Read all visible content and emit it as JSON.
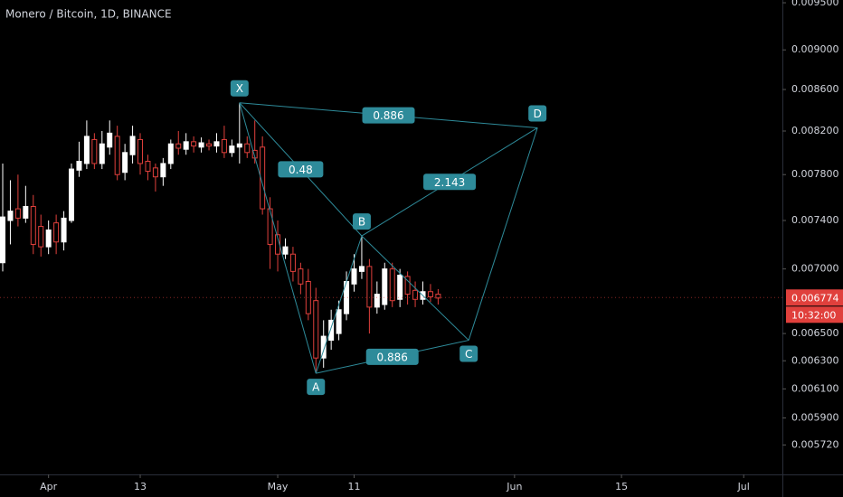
{
  "chart_data": {
    "type": "candlestick",
    "title": "Monero / Bitcoin, 1D, BINANCE",
    "log_scale": true,
    "up_color": "#ffffff",
    "down_color": "#e0403c",
    "pattern_color": "#2e8b9a",
    "x": [
      "03-26",
      "03-27",
      "03-28",
      "03-29",
      "03-30",
      "03-31",
      "04-01",
      "04-02",
      "04-03",
      "04-04",
      "04-05",
      "04-06",
      "04-07",
      "04-08",
      "04-09",
      "04-10",
      "04-11",
      "04-12",
      "04-13",
      "04-14",
      "04-15",
      "04-16",
      "04-17",
      "04-18",
      "04-19",
      "04-20",
      "04-21",
      "04-22",
      "04-23",
      "04-24",
      "04-25",
      "04-26",
      "04-27",
      "04-28",
      "04-29",
      "04-30",
      "05-01",
      "05-02",
      "05-03",
      "05-04",
      "05-05",
      "05-06",
      "05-07",
      "05-08",
      "05-09",
      "05-10",
      "05-11",
      "05-12",
      "05-13",
      "05-14",
      "05-15",
      "05-16",
      "05-17",
      "05-18",
      "05-19",
      "05-20",
      "05-21",
      "05-22"
    ],
    "open": [
      0.00705,
      0.0074,
      0.0075,
      0.00742,
      0.00752,
      0.00735,
      0.00718,
      0.00738,
      0.00722,
      0.0074,
      0.00784,
      0.0079,
      0.00812,
      0.0079,
      0.00805,
      0.00815,
      0.00782,
      0.00798,
      0.00812,
      0.00792,
      0.00786,
      0.00778,
      0.0079,
      0.00808,
      0.00803,
      0.0081,
      0.00805,
      0.00808,
      0.00806,
      0.00812,
      0.008,
      0.00805,
      0.00808,
      0.00802,
      0.00805,
      0.0075,
      0.00728,
      0.00712,
      0.00712,
      0.007,
      0.0069,
      0.00675,
      0.00632,
      0.00645,
      0.0065,
      0.00665,
      0.00688,
      0.00698,
      0.00702,
      0.0067,
      0.00672,
      0.007,
      0.00676,
      0.00694,
      0.00683,
      0.00676,
      0.00682,
      0.0068
    ],
    "high": [
      0.0079,
      0.00775,
      0.0078,
      0.0077,
      0.00762,
      0.00745,
      0.0074,
      0.00745,
      0.00748,
      0.0079,
      0.0081,
      0.0083,
      0.00818,
      0.0082,
      0.0083,
      0.00825,
      0.00808,
      0.00825,
      0.00818,
      0.00798,
      0.0079,
      0.00795,
      0.00812,
      0.0082,
      0.00818,
      0.00815,
      0.00814,
      0.00812,
      0.00818,
      0.00825,
      0.00812,
      0.00847,
      0.00815,
      0.0083,
      0.00815,
      0.0076,
      0.0074,
      0.00725,
      0.00718,
      0.00705,
      0.007,
      0.00685,
      0.0066,
      0.00668,
      0.00675,
      0.00698,
      0.00712,
      0.00727,
      0.00708,
      0.0069,
      0.00705,
      0.00705,
      0.007,
      0.00698,
      0.0069,
      0.0069,
      0.00688,
      0.00684
    ],
    "low": [
      0.00698,
      0.0072,
      0.00735,
      0.00738,
      0.00712,
      0.0071,
      0.00712,
      0.00712,
      0.00715,
      0.00738,
      0.00778,
      0.00785,
      0.00785,
      0.00785,
      0.00798,
      0.00775,
      0.00775,
      0.0079,
      0.0078,
      0.00775,
      0.00765,
      0.0077,
      0.00785,
      0.00798,
      0.00798,
      0.008,
      0.008,
      0.00802,
      0.008,
      0.00795,
      0.00796,
      0.0079,
      0.00795,
      0.0079,
      0.00745,
      0.007,
      0.00698,
      0.00708,
      0.0069,
      0.0068,
      0.0066,
      0.00621,
      0.00625,
      0.00638,
      0.00645,
      0.0066,
      0.00682,
      0.00692,
      0.0065,
      0.00665,
      0.00668,
      0.0067,
      0.0067,
      0.00672,
      0.0067,
      0.00672,
      0.00674,
      0.00672
    ],
    "close": [
      0.00743,
      0.00748,
      0.00742,
      0.00752,
      0.0072,
      0.00718,
      0.00732,
      0.00722,
      0.00742,
      0.00785,
      0.00792,
      0.00815,
      0.0079,
      0.00808,
      0.00818,
      0.0078,
      0.008,
      0.00815,
      0.0079,
      0.00783,
      0.00778,
      0.0079,
      0.00808,
      0.00804,
      0.0081,
      0.00806,
      0.00809,
      0.00806,
      0.0081,
      0.008,
      0.00806,
      0.00808,
      0.008,
      0.00795,
      0.0075,
      0.0072,
      0.00712,
      0.00718,
      0.00698,
      0.00688,
      0.00665,
      0.00632,
      0.00648,
      0.0066,
      0.00668,
      0.0069,
      0.007,
      0.00702,
      0.0067,
      0.0068,
      0.007,
      0.00675,
      0.00695,
      0.0068,
      0.00676,
      0.00682,
      0.00678,
      0.00677
    ],
    "xlim": [
      "03-26",
      "07-05"
    ],
    "xticks": [
      {
        "value": "04-01",
        "label": "Apr"
      },
      {
        "value": "04-13",
        "label": "13"
      },
      {
        "value": "05-01",
        "label": "May"
      },
      {
        "value": "05-11",
        "label": "11"
      },
      {
        "value": "06-01",
        "label": "Jun"
      },
      {
        "value": "06-15",
        "label": "15"
      },
      {
        "value": "07-01",
        "label": "Jul"
      }
    ],
    "ylim": [
      0.00553,
      0.00953
    ],
    "yticks": [
      {
        "value": 0.0095,
        "label": "0.009500"
      },
      {
        "value": 0.009,
        "label": "0.009000"
      },
      {
        "value": 0.0086,
        "label": "0.008600"
      },
      {
        "value": 0.0082,
        "label": "0.008200"
      },
      {
        "value": 0.0078,
        "label": "0.007800"
      },
      {
        "value": 0.0074,
        "label": "0.007400"
      },
      {
        "value": 0.007,
        "label": "0.007000"
      },
      {
        "value": 0.0065,
        "label": "0.006500"
      },
      {
        "value": 0.0063,
        "label": "0.006300"
      },
      {
        "value": 0.0061,
        "label": "0.006100"
      },
      {
        "value": 0.0059,
        "label": "0.005900"
      },
      {
        "value": 0.00572,
        "label": "0.005720"
      }
    ],
    "last_price": 0.006774,
    "countdown": "10:32:00",
    "pattern": {
      "points": [
        {
          "label": "X",
          "x": "04-26",
          "value": 0.00847
        },
        {
          "label": "A",
          "x": "05-06",
          "value": 0.00621
        },
        {
          "label": "B",
          "x": "05-12",
          "value": 0.00727
        },
        {
          "label": "C",
          "x": "05-26",
          "value": 0.00645
        },
        {
          "label": "D",
          "x": "06-04",
          "value": 0.00823
        }
      ],
      "ratios": [
        {
          "legs": [
            "X",
            "B"
          ],
          "value": 0.48
        },
        {
          "legs": [
            "B",
            "D"
          ],
          "value": 2.143
        },
        {
          "legs": [
            "X",
            "D"
          ],
          "value": 0.886
        },
        {
          "legs": [
            "A",
            "C"
          ],
          "value": 0.886
        }
      ]
    }
  }
}
